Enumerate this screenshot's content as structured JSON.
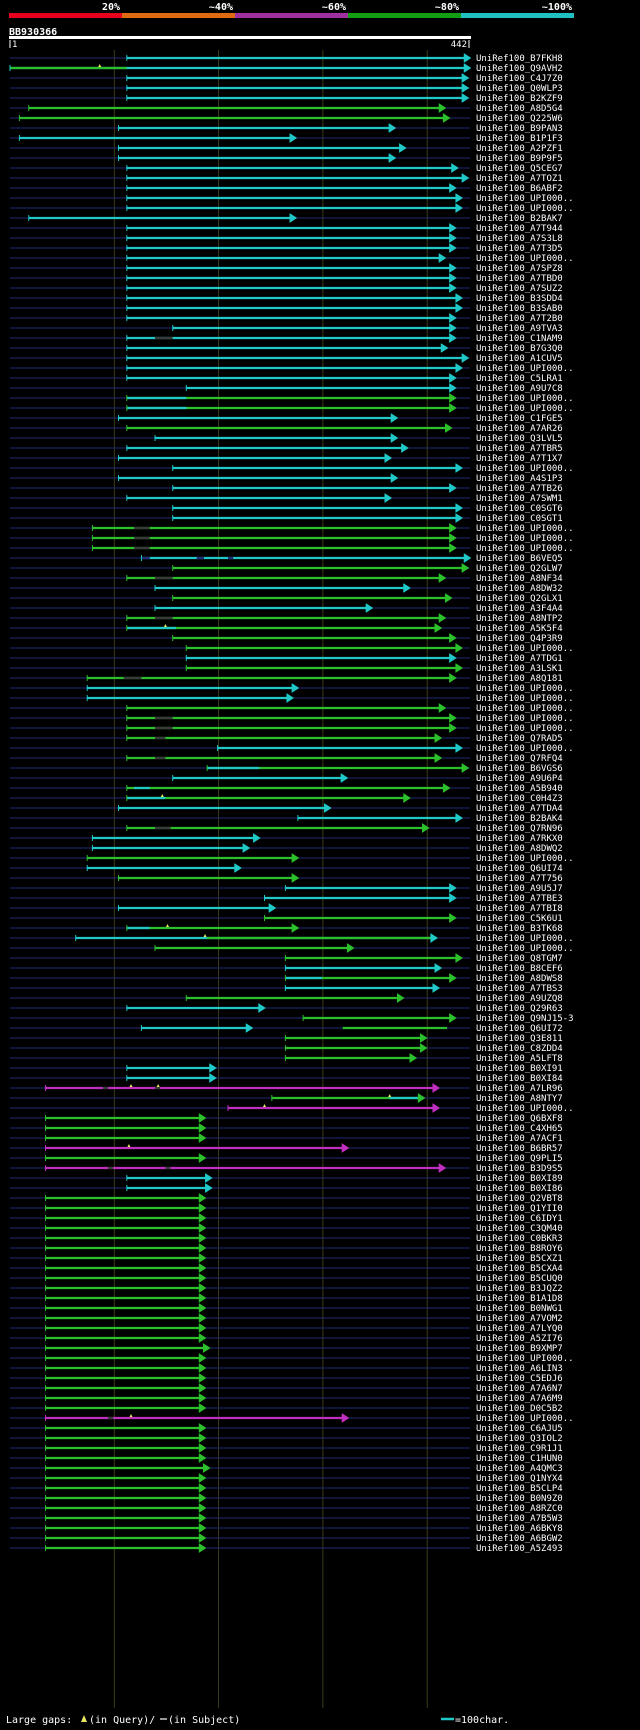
{
  "chart_data": {
    "type": "blast-alignment",
    "query_name": "BB930366",
    "query_range": [
      1,
      442
    ],
    "ruler_start_label": "1",
    "ruler_end_label": "442",
    "identity_scale": [
      {
        "label": "20%",
        "color": "#e8001c"
      },
      {
        "label": "~40%",
        "color": "#e06a10"
      },
      {
        "label": "~60%",
        "color": "#a030a0"
      },
      {
        "label": "~80%",
        "color": "#12a012"
      },
      {
        "label": "~100%",
        "color": "#20c0c0"
      }
    ],
    "colors": {
      "cyan": "#20c8c8",
      "green": "#2cc02c",
      "magenta": "#c030c0",
      "blue_line": "#1f2a78",
      "gap": "#e8e860"
    },
    "hits": [
      [
        "UniRef100_B7FKH8",
        "c",
        113,
        442,
        null
      ],
      [
        "UniRef100_Q9AVH2",
        "c",
        1,
        442,
        [
          [
            1,
            113,
            "g"
          ]
        ],
        [
          87
        ]
      ],
      [
        "UniRef100_C4J7Z0",
        "c",
        113,
        440,
        null
      ],
      [
        "UniRef100_Q0WLP3",
        "c",
        113,
        440,
        null
      ],
      [
        "UniRef100_B2KZF9",
        "c",
        113,
        440,
        null
      ],
      [
        "UniRef100_A8D5G4",
        "g",
        19,
        418,
        null
      ],
      [
        "UniRef100_Q225W6",
        "g",
        10,
        422,
        null
      ],
      [
        "UniRef100_B9PAN3",
        "c",
        105,
        370,
        null
      ],
      [
        "UniRef100_B1P1F3",
        "c",
        10,
        275,
        null
      ],
      [
        "UniRef100_A2PZF1",
        "c",
        105,
        380,
        null
      ],
      [
        "UniRef100_B9P9F5",
        "c",
        105,
        370,
        null
      ],
      [
        "UniRef100_Q5CEG7",
        "c",
        113,
        430,
        null
      ],
      [
        "UniRef100_A7TOZ1",
        "c",
        113,
        440,
        null
      ],
      [
        "UniRef100_B6ABF2",
        "c",
        113,
        428,
        null
      ],
      [
        "UniRef100_UPI000..",
        "c",
        113,
        434,
        null
      ],
      [
        "UniRef100_UPI000..",
        "c",
        113,
        434,
        null
      ],
      [
        "UniRef100_B2BAK7",
        "c",
        19,
        275,
        null
      ],
      [
        "UniRef100_A7T944",
        "c",
        113,
        428,
        null
      ],
      [
        "UniRef100_A7S3L8",
        "c",
        113,
        428,
        null
      ],
      [
        "UniRef100_A7T3D5",
        "c",
        113,
        428,
        null
      ],
      [
        "UniRef100_UPI000..",
        "c",
        113,
        418,
        null
      ],
      [
        "UniRef100_A7SPZ8",
        "c",
        113,
        428,
        null
      ],
      [
        "UniRef100_A7TBD0",
        "c",
        113,
        428,
        null
      ],
      [
        "UniRef100_A7SUZ2",
        "c",
        113,
        428,
        null
      ],
      [
        "UniRef100_B3SDD4",
        "c",
        113,
        434,
        null
      ],
      [
        "UniRef100_B3SAB0",
        "c",
        113,
        434,
        null
      ],
      [
        "UniRef100_A7T2B0",
        "c",
        113,
        428,
        null
      ],
      [
        "UniRef100_A9TVA3",
        "c",
        157,
        428,
        null
      ],
      [
        "UniRef100_C1NAM9",
        "c",
        113,
        428,
        [
          [
            140,
            157,
            "gap"
          ]
        ]
      ],
      [
        "UniRef100_B7G3Q0",
        "c",
        113,
        420,
        null
      ],
      [
        "UniRef100_A1CUV5",
        "c",
        113,
        440,
        null
      ],
      [
        "UniRef100_UPI000..",
        "c",
        113,
        434,
        null
      ],
      [
        "UniRef100_C5LRA1",
        "c",
        113,
        428,
        null
      ],
      [
        "UniRef100_A9U7C8",
        "c",
        170,
        428,
        null
      ],
      [
        "UniRef100_UPI000..",
        "g",
        113,
        428,
        [
          [
            113,
            170,
            "c"
          ]
        ]
      ],
      [
        "UniRef100_UPI000..",
        "g",
        113,
        428,
        [
          [
            113,
            170,
            "c"
          ]
        ]
      ],
      [
        "UniRef100_C1FGE5",
        "c",
        105,
        372,
        null
      ],
      [
        "UniRef100_A7AR26",
        "g",
        113,
        424,
        null
      ],
      [
        "UniRef100_Q3LVL5",
        "c",
        140,
        372,
        null
      ],
      [
        "UniRef100_A7TBR5",
        "c",
        113,
        382,
        null
      ],
      [
        "UniRef100_A7T1X7",
        "c",
        105,
        366,
        null
      ],
      [
        "UniRef100_UPI000..",
        "c",
        157,
        434,
        null
      ],
      [
        "UniRef100_A4S1P3",
        "c",
        105,
        372,
        null
      ],
      [
        "UniRef100_A7TB26",
        "c",
        157,
        428,
        null
      ],
      [
        "UniRef100_A7SWM1",
        "c",
        113,
        366,
        null
      ],
      [
        "UniRef100_C0SGT6",
        "c",
        157,
        434,
        null
      ],
      [
        "UniRef100_C0SGT1",
        "c",
        157,
        434,
        null
      ],
      [
        "UniRef100_UPI000..",
        "g",
        80,
        428,
        [
          [
            120,
            135,
            "gap"
          ]
        ]
      ],
      [
        "UniRef100_UPI000..",
        "g",
        80,
        428,
        [
          [
            120,
            135,
            "gap"
          ]
        ]
      ],
      [
        "UniRef100_UPI000..",
        "g",
        80,
        428,
        [
          [
            120,
            135,
            "gap"
          ]
        ]
      ],
      [
        "UniRef100_B6VEQ5",
        "c",
        127,
        442,
        [
          [
            127,
            135,
            "dash"
          ],
          [
            180,
            187,
            "dash"
          ],
          [
            210,
            215,
            "dash"
          ]
        ]
      ],
      [
        "UniRef100_Q2GLW7",
        "g",
        157,
        440,
        null
      ],
      [
        "UniRef100_A8NF34",
        "g",
        113,
        418,
        [
          [
            140,
            157,
            "gap"
          ]
        ]
      ],
      [
        "UniRef100_A8DW32",
        "c",
        140,
        384,
        null
      ],
      [
        "UniRef100_Q2GLX1",
        "g",
        157,
        424,
        null
      ],
      [
        "UniRef100_A3F4A4",
        "c",
        140,
        348,
        null
      ],
      [
        "UniRef100_A8NTP2",
        "g",
        113,
        418,
        [
          [
            140,
            157,
            "gap"
          ]
        ]
      ],
      [
        "UniRef100_A5K5F4",
        "g",
        113,
        414,
        [
          [
            113,
            160,
            "c"
          ]
        ],
        [
          150
        ]
      ],
      [
        "UniRef100_Q4P3R9",
        "g",
        157,
        428,
        null
      ],
      [
        "UniRef100_UPI000..",
        "g",
        170,
        434,
        null
      ],
      [
        "UniRef100_A7TDG1",
        "c",
        170,
        428,
        null
      ],
      [
        "UniRef100_A3LSK1",
        "g",
        170,
        434,
        null
      ],
      [
        "UniRef100_A8Q181",
        "g",
        75,
        428,
        [
          [
            110,
            127,
            "gap"
          ]
        ]
      ],
      [
        "UniRef100_UPI000..",
        "c",
        75,
        277,
        null
      ],
      [
        "UniRef100_UPI000..",
        "c",
        75,
        272,
        null
      ],
      [
        "UniRef100_UPI000..",
        "g",
        113,
        418,
        null
      ],
      [
        "UniRef100_UPI000..",
        "g",
        113,
        428,
        [
          [
            140,
            157,
            "gap"
          ]
        ]
      ],
      [
        "UniRef100_UPI000..",
        "g",
        113,
        428,
        [
          [
            140,
            157,
            "gap"
          ]
        ]
      ],
      [
        "UniRef100_Q7RAD5",
        "g",
        113,
        414,
        [
          [
            140,
            150,
            "gap"
          ]
        ]
      ],
      [
        "UniRef100_UPI000..",
        "c",
        200,
        434,
        null
      ],
      [
        "UniRef100_Q7RFQ4",
        "g",
        113,
        414,
        [
          [
            140,
            150,
            "gap"
          ]
        ]
      ],
      [
        "UniRef100_B6VGS6",
        "g",
        190,
        440,
        [
          [
            190,
            240,
            "c"
          ]
        ]
      ],
      [
        "UniRef100_A9U6P4",
        "c",
        157,
        324,
        null
      ],
      [
        "UniRef100_A5B940",
        "g",
        113,
        422,
        [
          [
            120,
            135,
            "c"
          ]
        ]
      ],
      [
        "UniRef100_C0H4Z3",
        "g",
        113,
        384,
        [
          [
            113,
            150,
            "c"
          ]
        ],
        [
          147
        ]
      ],
      [
        "UniRef100_A7TDA4",
        "c",
        105,
        308,
        null
      ],
      [
        "UniRef100_B2BAK4",
        "c",
        277,
        434,
        null
      ],
      [
        "UniRef100_Q7RN96",
        "g",
        113,
        402,
        [
          [
            140,
            155,
            "gap"
          ]
        ]
      ],
      [
        "UniRef100_A7RKX0",
        "c",
        80,
        240,
        null
      ],
      [
        "UniRef100_A8DWQ2",
        "c",
        80,
        230,
        null
      ],
      [
        "UniRef100_UPI000..",
        "g",
        75,
        277,
        null
      ],
      [
        "UniRef100_Q6UI74",
        "c",
        75,
        222,
        null
      ],
      [
        "UniRef100_A7T756",
        "g",
        105,
        277,
        null
      ],
      [
        "UniRef100_A9U5J7",
        "c",
        265,
        428,
        null
      ],
      [
        "UniRef100_A7TBE3",
        "c",
        245,
        428,
        null
      ],
      [
        "UniRef100_A7TBI8",
        "c",
        105,
        255,
        null
      ],
      [
        "UniRef100_C5K6U1",
        "g",
        245,
        428,
        null
      ],
      [
        "UniRef100_B3TK68",
        "g",
        113,
        277,
        [
          [
            113,
            135,
            "c"
          ]
        ],
        [
          152
        ]
      ],
      [
        "UniRef100_UPI000..",
        "c",
        64,
        410,
        [
          [
            190,
            410,
            "g"
          ]
        ],
        [
          188
        ]
      ],
      [
        "UniRef100_UPI000..",
        "g",
        140,
        330,
        null
      ],
      [
        "UniRef100_Q8TGM7",
        "g",
        265,
        434,
        null
      ],
      [
        "UniRef100_B8CEF6",
        "c",
        265,
        414,
        null
      ],
      [
        "UniRef100_A8DWS8",
        "g",
        265,
        428,
        [
          [
            265,
            300,
            "c"
          ]
        ]
      ],
      [
        "UniRef100_A7TBS3",
        "c",
        265,
        412,
        null
      ],
      [
        "UniRef100_A9UZQ8",
        "g",
        170,
        378,
        null
      ],
      [
        "UniRef100_Q29R63",
        "c",
        113,
        245,
        null
      ],
      [
        "UniRef100_Q9NJ15-3",
        "g",
        282,
        428,
        null
      ],
      [
        "UniRef100_Q6UI72",
        "c",
        127,
        233,
        [
          [
            320,
            420,
            "g"
          ]
        ]
      ],
      [
        "UniRef100_Q3E811",
        "g",
        265,
        400,
        null
      ],
      [
        "UniRef100_C8ZDD4",
        "g",
        265,
        400,
        null
      ],
      [
        "UniRef100_A5LFT8",
        "g",
        265,
        390,
        null
      ],
      [
        "UniRef100_B0XI91",
        "c",
        113,
        198,
        null
      ],
      [
        "UniRef100_B0XI84",
        "c",
        113,
        198,
        null
      ],
      [
        "UniRef100_A7LR96",
        "m",
        35,
        412,
        [
          [
            90,
            95,
            "gap"
          ],
          [
            140,
            145,
            "gap"
          ]
        ],
        [
          117,
          143
        ]
      ],
      [
        "UniRef100_A8NTY7",
        "g",
        252,
        398,
        [
          [
            365,
            398,
            "c"
          ]
        ],
        [
          365
        ]
      ],
      [
        "UniRef100_UPI000..",
        "m",
        210,
        412,
        null,
        [
          245
        ]
      ],
      [
        "UniRef100_Q6BXF8",
        "g",
        35,
        188,
        null
      ],
      [
        "UniRef100_C4XH65",
        "g",
        35,
        188,
        null
      ],
      [
        "UniRef100_A7ACF1",
        "g",
        35,
        188,
        null
      ],
      [
        "UniRef100_B6BR57",
        "m",
        35,
        325,
        null,
        [
          115
        ]
      ],
      [
        "UniRef100_Q9PLI5",
        "g",
        35,
        188,
        null
      ],
      [
        "UniRef100_B3D9S5",
        "m",
        35,
        418,
        [
          [
            95,
            100,
            "gap"
          ],
          [
            150,
            155,
            "gap"
          ]
        ]
      ],
      [
        "UniRef100_B0XI89",
        "c",
        113,
        194,
        null
      ],
      [
        "UniRef100_B0XI86",
        "c",
        113,
        194,
        null
      ],
      [
        "UniRef100_Q2VBT8",
        "g",
        35,
        188,
        null
      ],
      [
        "UniRef100_Q1YII0",
        "g",
        35,
        188,
        null
      ],
      [
        "UniRef100_C6IDY1",
        "g",
        35,
        188,
        null
      ],
      [
        "UniRef100_C3QM40",
        "g",
        35,
        188,
        null
      ],
      [
        "UniRef100_C0BKR3",
        "g",
        35,
        188,
        null
      ],
      [
        "UniRef100_B8ROY6",
        "g",
        35,
        188,
        null
      ],
      [
        "UniRef100_B5CXZ1",
        "g",
        35,
        188,
        null
      ],
      [
        "UniRef100_B5CXA4",
        "g",
        35,
        188,
        null
      ],
      [
        "UniRef100_B5CUQ0",
        "g",
        35,
        188,
        null
      ],
      [
        "UniRef100_B3JQZ2",
        "g",
        35,
        188,
        null
      ],
      [
        "UniRef100_B1A1D8",
        "g",
        35,
        188,
        null
      ],
      [
        "UniRef100_B0NWG1",
        "g",
        35,
        188,
        null
      ],
      [
        "UniRef100_A7VOM2",
        "g",
        35,
        188,
        null
      ],
      [
        "UniRef100_A7LYQ0",
        "g",
        35,
        188,
        null
      ],
      [
        "UniRef100_A5ZI76",
        "g",
        35,
        188,
        null
      ],
      [
        "UniRef100_B9XMP7",
        "g",
        35,
        192,
        null
      ],
      [
        "UniRef100_UPI000..",
        "g",
        35,
        188,
        null
      ],
      [
        "UniRef100_A6LIN3",
        "g",
        35,
        188,
        null
      ],
      [
        "UniRef100_C5EDJ6",
        "g",
        35,
        188,
        null
      ],
      [
        "UniRef100_A7A6N7",
        "g",
        35,
        188,
        null
      ],
      [
        "UniRef100_A7A6M9",
        "g",
        35,
        188,
        null
      ],
      [
        "UniRef100_D0C5B2",
        "g",
        35,
        188,
        null
      ],
      [
        "UniRef100_UPI000..",
        "m",
        35,
        325,
        [
          [
            95,
            100,
            "gap"
          ]
        ],
        [
          117
        ]
      ],
      [
        "UniRef100_C6AJU5",
        "g",
        35,
        188,
        null
      ],
      [
        "UniRef100_Q3IOL2",
        "g",
        35,
        188,
        null
      ],
      [
        "UniRef100_C9R1J1",
        "g",
        35,
        188,
        null
      ],
      [
        "UniRef100_C1HUN0",
        "g",
        35,
        188,
        null
      ],
      [
        "UniRef100_A4QMC3",
        "g",
        35,
        192,
        null
      ],
      [
        "UniRef100_Q1NYX4",
        "g",
        35,
        188,
        null
      ],
      [
        "UniRef100_B5CLP4",
        "g",
        35,
        188,
        null
      ],
      [
        "UniRef100_B0N9Z0",
        "g",
        35,
        188,
        null
      ],
      [
        "UniRef100_A8RZC0",
        "g",
        35,
        188,
        null
      ],
      [
        "UniRef100_A7B5W3",
        "g",
        35,
        188,
        null
      ],
      [
        "UniRef100_A6BKY8",
        "g",
        35,
        188,
        null
      ],
      [
        "UniRef100_A6BGW2",
        "g",
        35,
        188,
        null
      ],
      [
        "UniRef100_A5Z493",
        "g",
        35,
        188,
        null
      ]
    ]
  },
  "footer": {
    "gap_legend_prefix": "Large gaps:",
    "gap_legend_query": "(in Query)/",
    "gap_legend_subject": "(in Subject)",
    "scale_legend": "=100char."
  }
}
